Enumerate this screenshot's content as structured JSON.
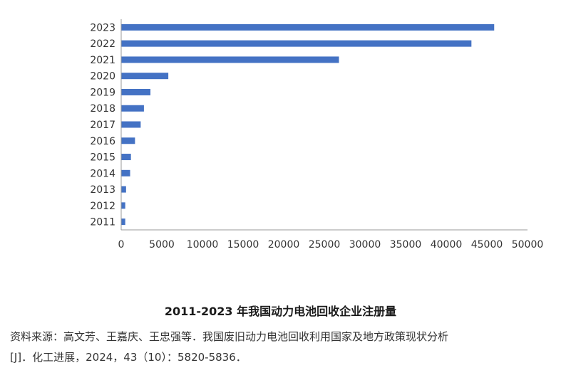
{
  "chart_data": {
    "type": "bar",
    "orientation": "horizontal",
    "categories": [
      "2011",
      "2012",
      "2013",
      "2014",
      "2015",
      "2016",
      "2017",
      "2018",
      "2019",
      "2020",
      "2021",
      "2022",
      "2023"
    ],
    "values": [
      500,
      500,
      600,
      1100,
      1200,
      1700,
      2400,
      2800,
      3600,
      5800,
      26800,
      43100,
      45900
    ],
    "xlim": [
      0,
      50000
    ],
    "xticks": [
      0,
      5000,
      10000,
      15000,
      20000,
      25000,
      30000,
      35000,
      40000,
      45000,
      50000
    ],
    "bar_color": "#4472C4",
    "grid": false,
    "legend": "none"
  },
  "caption": {
    "title": "2011-2023 年我国动力电池回收企业注册量",
    "source_line1": "资料来源：高文芳、王嘉庆、王忠强等．我国废旧动力电池回收利用国家及地方政策现状分析",
    "source_line2": "[J]．化工进展，2024，43（10）：5820-5836．"
  }
}
